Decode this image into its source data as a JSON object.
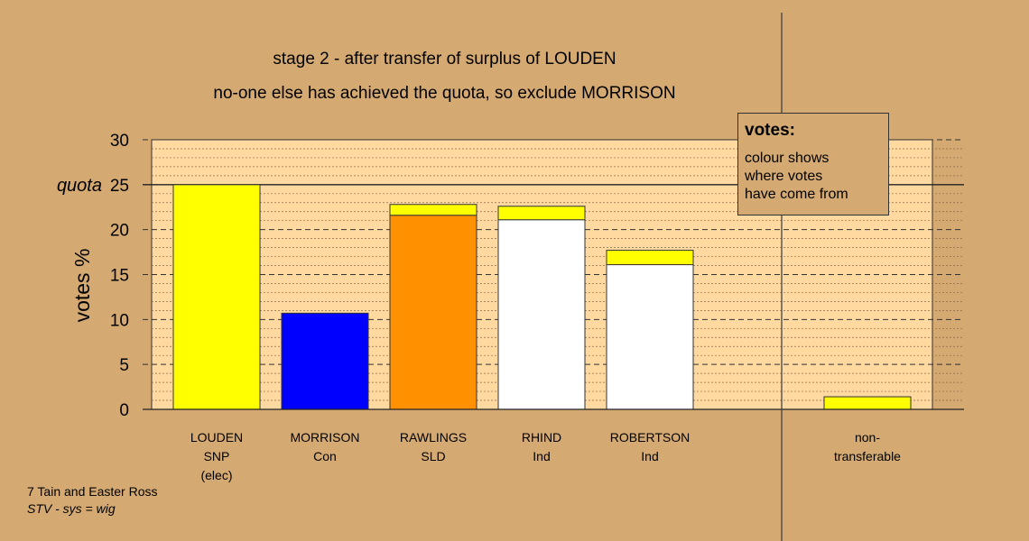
{
  "titles": {
    "line1": "stage 2 - after transfer of surplus of LOUDEN",
    "line2": "no-one else has achieved the quota, so exclude MORRISON"
  },
  "legend": {
    "heading": "votes:",
    "lines": [
      "colour shows",
      "where votes",
      "have come from"
    ]
  },
  "footer": {
    "line1": "7 Tain and Easter Ross",
    "line2": "STV - sys = wig"
  },
  "chart_data": {
    "type": "bar",
    "stacked": true,
    "ylabel": "votes %",
    "ylim": [
      0,
      30
    ],
    "yticks": [
      0,
      5,
      10,
      15,
      20,
      25,
      30
    ],
    "quota": {
      "value": 25,
      "label": "quota"
    },
    "categories": [
      [
        "LOUDEN",
        "SNP",
        "(elec)"
      ],
      [
        "MORRISON",
        "Con"
      ],
      [
        "RAWLINGS",
        "SLD"
      ],
      [
        "RHIND",
        "Ind"
      ],
      [
        "ROBERTSON",
        "Ind"
      ],
      [
        "non-",
        "transferable"
      ]
    ],
    "bars": [
      {
        "segments": [
          {
            "value": 25.0,
            "color": "#FFFF00"
          }
        ]
      },
      {
        "segments": [
          {
            "value": 10.7,
            "color": "#0000FF"
          }
        ]
      },
      {
        "segments": [
          {
            "value": 21.6,
            "color": "#FF9000"
          },
          {
            "value": 1.2,
            "color": "#FFFF00"
          }
        ]
      },
      {
        "segments": [
          {
            "value": 21.1,
            "color": "#FFFFFF"
          },
          {
            "value": 1.5,
            "color": "#FFFF00"
          }
        ]
      },
      {
        "segments": [
          {
            "value": 16.1,
            "color": "#FFFFFF"
          },
          {
            "value": 1.6,
            "color": "#FFFF00"
          }
        ]
      },
      {
        "segments": [
          {
            "value": 1.4,
            "color": "#FFFF00"
          }
        ]
      }
    ],
    "colors": {
      "background": "#D4A972",
      "plot_area": "#FFD9A0"
    }
  }
}
